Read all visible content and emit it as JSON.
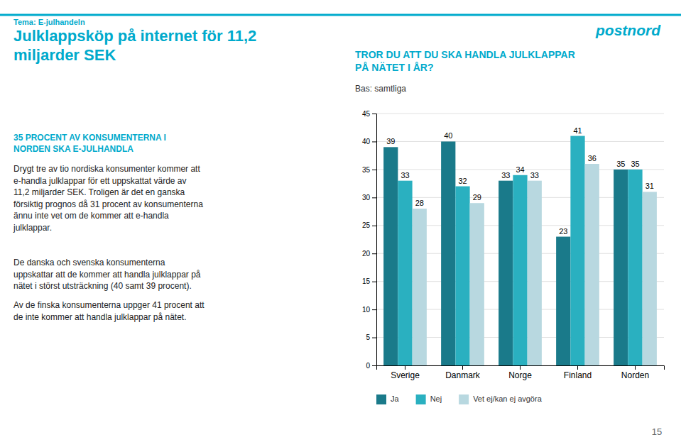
{
  "page": {
    "tema": "Tema: E-julhandeln",
    "title": "Julklappsköp på internet för 11,2\nmiljarder SEK",
    "subtitle": "35 PROCENT AV KONSUMENTERNA I\nNORDEN SKA E-JULHANDLA",
    "paragraphs": [
      "Drygt tre av tio nordiska konsumenter kommer att\ne-handla julklappar för ett uppskattat värde av\n11,2 miljarder SEK. Troligen är det en ganska\nförsiktig prognos då 31 procent av konsumenterna\nännu inte vet om de kommer att e-handla\njulklappar.",
      "De danska och svenska konsumenterna\nuppskattar att de kommer att handla julklappar på\nnätet i störst utsträckning (40 samt 39 procent).",
      "Av de finska konsumenterna uppger 41 procent att\nde inte kommer att handla julklappar på nätet."
    ],
    "logo": "postnord",
    "page_number": "15",
    "color": "#00aacc"
  },
  "chart_data": {
    "type": "bar",
    "title": "TROR DU ATT DU SKA HANDLA JULKLAPPAR\nPÅ NÄTET I ÅR?",
    "subtitle": "Bas: samtliga",
    "categories": [
      "Sverige",
      "Danmark",
      "Norge",
      "Finland",
      "Norden"
    ],
    "series": [
      {
        "name": "Ja",
        "color": "#1a7a8a",
        "values": [
          39,
          40,
          33,
          23,
          35
        ]
      },
      {
        "name": "Nej",
        "color": "#2ab0c0",
        "values": [
          33,
          32,
          34,
          41,
          35
        ]
      },
      {
        "name": "Vet ej/kan ej avgöra",
        "color": "#b8d8e0",
        "values": [
          28,
          29,
          33,
          36,
          31
        ]
      }
    ],
    "ylim": [
      0,
      45
    ],
    "yticks": [
      0,
      5,
      10,
      15,
      20,
      25,
      30,
      35,
      40,
      45
    ],
    "grid": true,
    "legend": "bottom",
    "data_labels": true
  }
}
